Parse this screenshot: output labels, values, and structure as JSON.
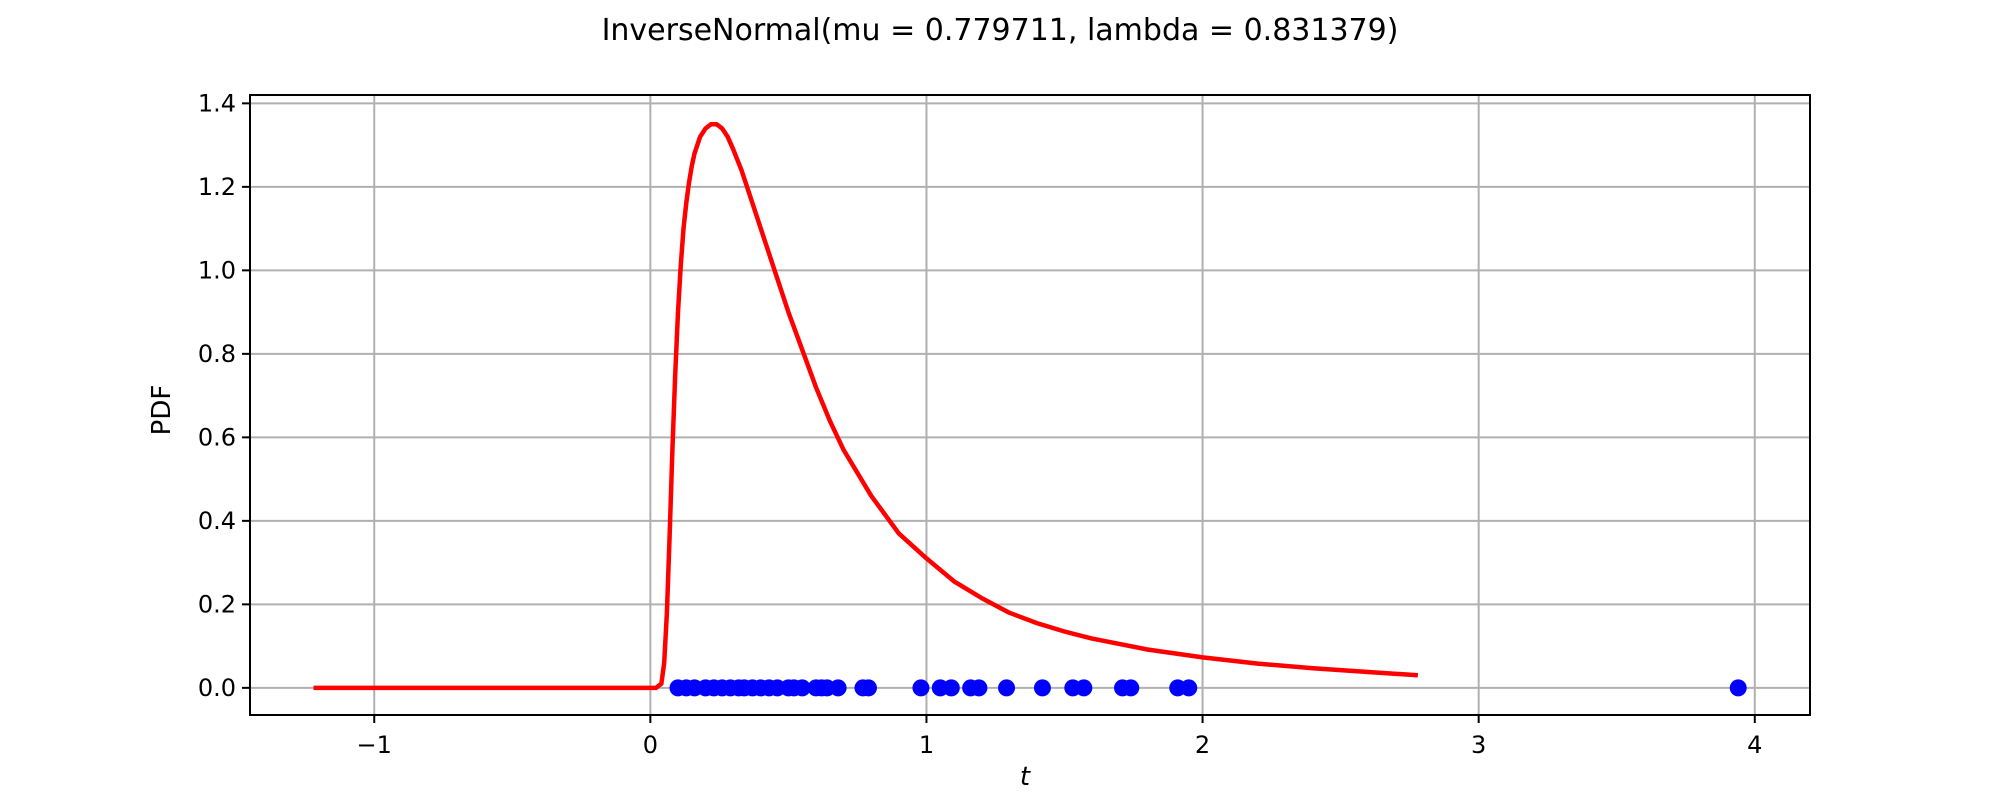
{
  "chart_data": {
    "type": "line",
    "title": "InverseNormal(mu = 0.779711, lambda = 0.831379)",
    "xlabel": "t",
    "ylabel": "PDF",
    "xlim": [
      -1.45,
      4.2
    ],
    "ylim": [
      -0.065,
      1.42
    ],
    "xticks": [
      -1,
      0,
      1,
      2,
      3,
      4
    ],
    "xtick_labels": [
      "−1",
      "0",
      "1",
      "2",
      "3",
      "4"
    ],
    "yticks": [
      0.0,
      0.2,
      0.4,
      0.6,
      0.8,
      1.0,
      1.2,
      1.4
    ],
    "ytick_labels": [
      "0.0",
      "0.2",
      "0.4",
      "0.6",
      "0.8",
      "1.0",
      "1.2",
      "1.4"
    ],
    "grid": true,
    "colors": {
      "curve": "#ff0000",
      "points": "#0000ff"
    },
    "series": [
      {
        "kind": "line",
        "x": [
          -1.22,
          -0.8,
          -0.4,
          0.0,
          0.02,
          0.04,
          0.05,
          0.06,
          0.07,
          0.08,
          0.09,
          0.1,
          0.11,
          0.12,
          0.13,
          0.14,
          0.15,
          0.16,
          0.18,
          0.2,
          0.22,
          0.24,
          0.26,
          0.28,
          0.3,
          0.33,
          0.36,
          0.4,
          0.45,
          0.5,
          0.55,
          0.6,
          0.65,
          0.7,
          0.8,
          0.9,
          1.0,
          1.1,
          1.2,
          1.3,
          1.4,
          1.5,
          1.6,
          1.8,
          2.0,
          2.2,
          2.4,
          2.6,
          2.78
        ],
        "y": [
          0.0,
          0.0,
          0.0,
          0.0,
          0.0,
          0.01,
          0.06,
          0.18,
          0.37,
          0.57,
          0.75,
          0.9,
          1.01,
          1.1,
          1.16,
          1.21,
          1.25,
          1.28,
          1.32,
          1.34,
          1.35,
          1.35,
          1.34,
          1.32,
          1.29,
          1.24,
          1.18,
          1.1,
          1.0,
          0.9,
          0.81,
          0.72,
          0.64,
          0.57,
          0.46,
          0.37,
          0.31,
          0.255,
          0.215,
          0.18,
          0.155,
          0.135,
          0.118,
          0.092,
          0.073,
          0.058,
          0.047,
          0.038,
          0.03
        ]
      },
      {
        "kind": "scatter",
        "x": [
          0.1,
          0.13,
          0.16,
          0.2,
          0.23,
          0.26,
          0.29,
          0.32,
          0.34,
          0.37,
          0.4,
          0.43,
          0.46,
          0.5,
          0.52,
          0.55,
          0.6,
          0.62,
          0.64,
          0.68,
          0.77,
          0.79,
          0.98,
          1.05,
          1.09,
          1.16,
          1.19,
          1.29,
          1.42,
          1.53,
          1.57,
          1.71,
          1.74,
          1.91,
          1.95,
          3.94
        ],
        "y": [
          0,
          0,
          0,
          0,
          0,
          0,
          0,
          0,
          0,
          0,
          0,
          0,
          0,
          0,
          0,
          0,
          0,
          0,
          0,
          0,
          0,
          0,
          0,
          0,
          0,
          0,
          0,
          0,
          0,
          0,
          0,
          0,
          0,
          0,
          0,
          0
        ]
      }
    ]
  }
}
